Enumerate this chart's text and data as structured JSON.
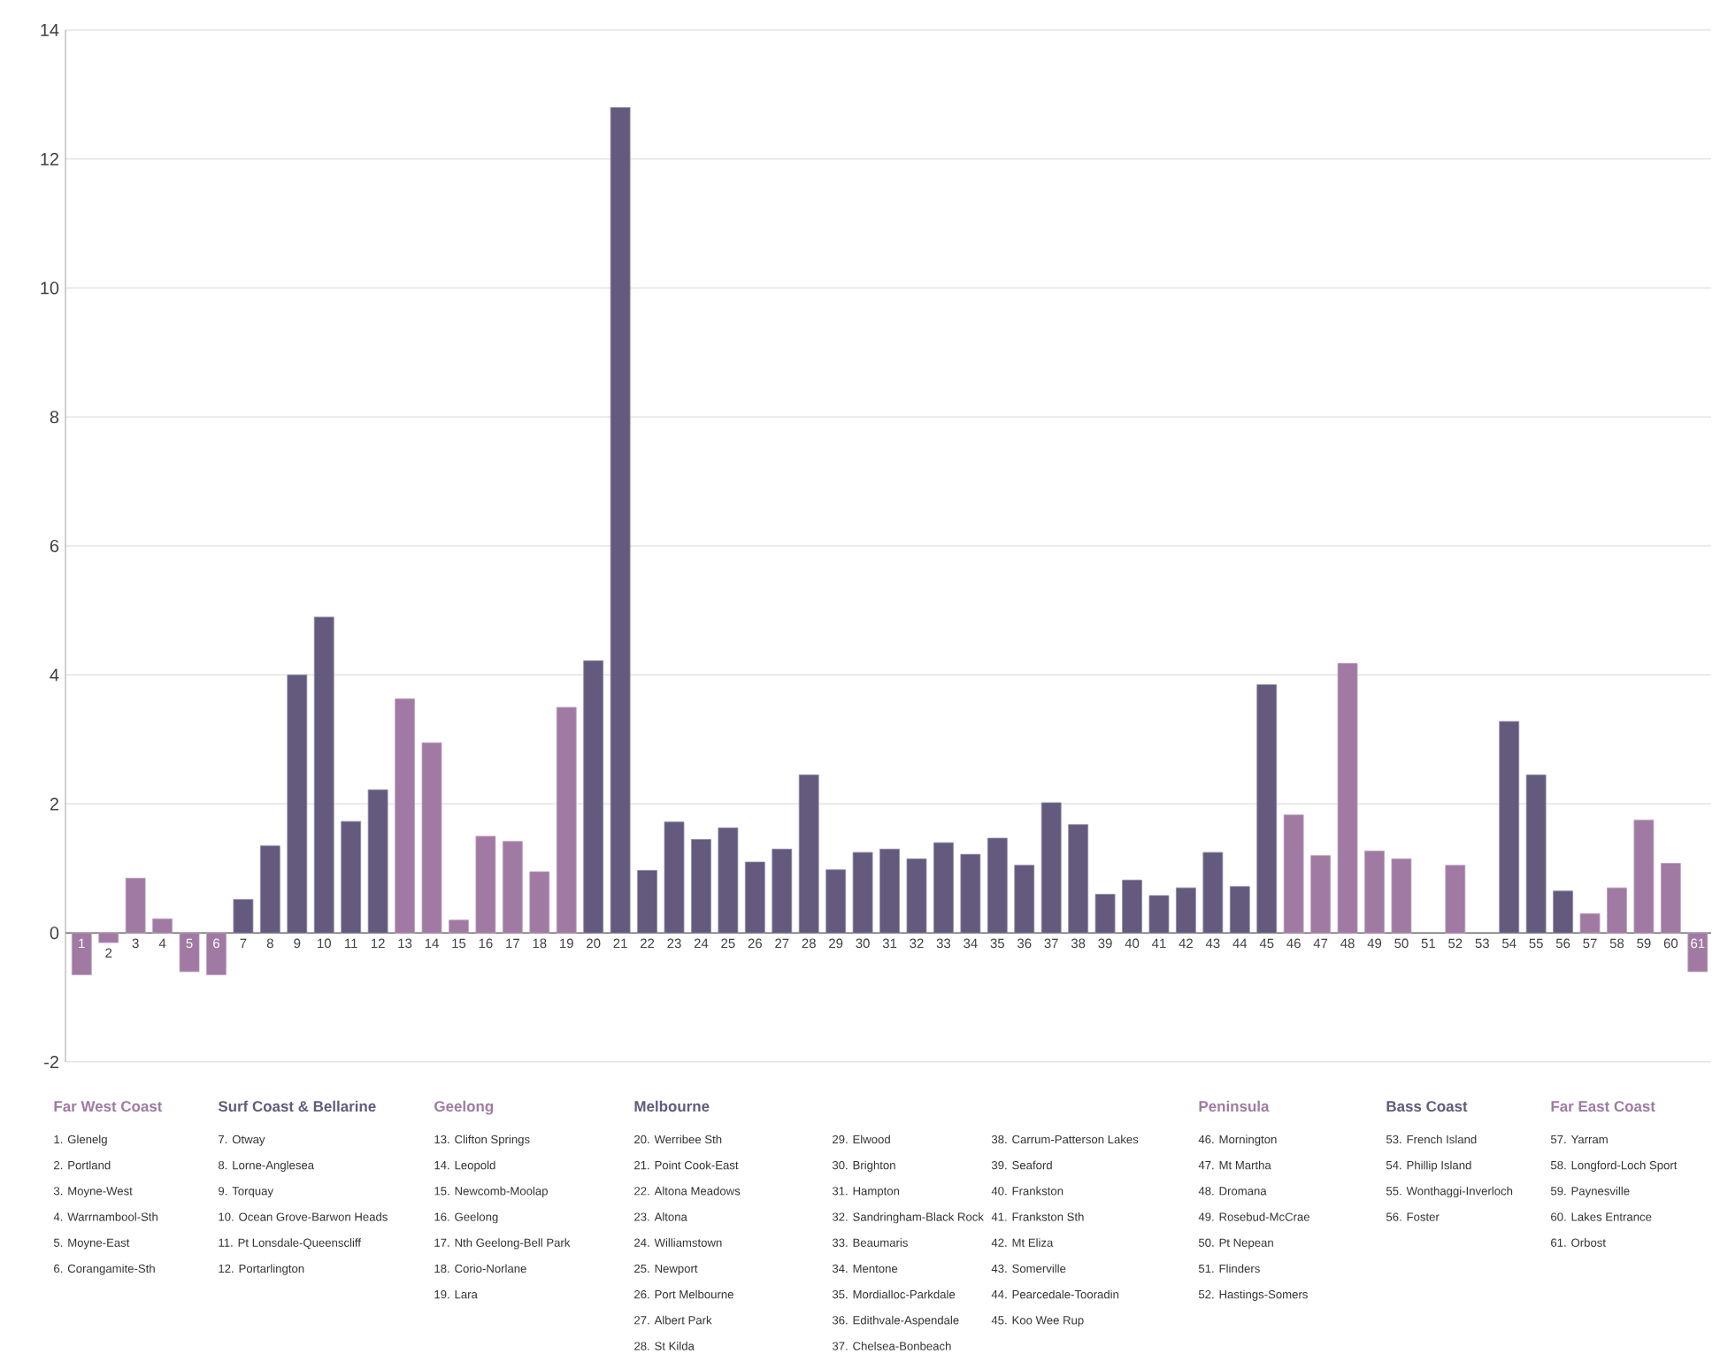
{
  "chart_data": {
    "type": "bar",
    "categories": [
      "1",
      "2",
      "3",
      "4",
      "5",
      "6",
      "7",
      "8",
      "9",
      "10",
      "11",
      "12",
      "13",
      "14",
      "15",
      "16",
      "17",
      "18",
      "19",
      "20",
      "21",
      "22",
      "23",
      "24",
      "25",
      "26",
      "27",
      "28",
      "29",
      "30",
      "31",
      "32",
      "33",
      "34",
      "35",
      "36",
      "37",
      "38",
      "39",
      "40",
      "41",
      "42",
      "43",
      "44",
      "45",
      "46",
      "47",
      "48",
      "49",
      "50",
      "51",
      "52",
      "53",
      "54",
      "55",
      "56",
      "57",
      "58",
      "59",
      "60",
      "61"
    ],
    "values": [
      -0.65,
      -0.15,
      0.85,
      0.22,
      -0.6,
      -0.65,
      0.52,
      1.35,
      4.0,
      4.9,
      1.73,
      2.22,
      3.63,
      2.95,
      0.2,
      1.5,
      1.42,
      0.95,
      3.5,
      4.22,
      12.8,
      0.97,
      1.72,
      1.45,
      1.63,
      1.1,
      1.3,
      2.45,
      0.98,
      1.25,
      1.3,
      1.15,
      1.4,
      1.22,
      1.47,
      1.05,
      2.02,
      1.68,
      0.6,
      0.82,
      0.58,
      0.7,
      1.25,
      0.72,
      3.85,
      1.83,
      1.2,
      4.18,
      1.27,
      1.15,
      0,
      1.05,
      0,
      3.28,
      2.45,
      0.65,
      0.3,
      0.7,
      1.75,
      1.08,
      -0.6
    ],
    "colors": [
      "#a07aa3",
      "#a07aa3",
      "#a07aa3",
      "#a07aa3",
      "#a07aa3",
      "#a07aa3",
      "#635a7e",
      "#635a7e",
      "#635a7e",
      "#635a7e",
      "#635a7e",
      "#635a7e",
      "#a07aa3",
      "#a07aa3",
      "#a07aa3",
      "#a07aa3",
      "#a07aa3",
      "#a07aa3",
      "#a07aa3",
      "#635a7e",
      "#635a7e",
      "#635a7e",
      "#635a7e",
      "#635a7e",
      "#635a7e",
      "#635a7e",
      "#635a7e",
      "#635a7e",
      "#635a7e",
      "#635a7e",
      "#635a7e",
      "#635a7e",
      "#635a7e",
      "#635a7e",
      "#635a7e",
      "#635a7e",
      "#635a7e",
      "#635a7e",
      "#635a7e",
      "#635a7e",
      "#635a7e",
      "#635a7e",
      "#635a7e",
      "#635a7e",
      "#635a7e",
      "#a07aa3",
      "#a07aa3",
      "#a07aa3",
      "#a07aa3",
      "#a07aa3",
      "#a07aa3",
      "#a07aa3",
      "#635a7e",
      "#635a7e",
      "#635a7e",
      "#635a7e",
      "#a07aa3",
      "#a07aa3",
      "#a07aa3",
      "#a07aa3",
      "#a07aa3"
    ],
    "ylim": [
      -2,
      14
    ],
    "yticks": [
      -2,
      0,
      2,
      4,
      6,
      8,
      10,
      12,
      14
    ],
    "grid": "y",
    "annotations": [
      "Far West Coast",
      "1. Glenelg",
      "2. Portland",
      "3. Moyne-West",
      "4. Warrnambool-Sth",
      "5. Moyne-East",
      "6. Corangamite-Sth",
      "Surf Coast & Bellarine",
      "7. Otway",
      "8. Lorne-Anglesea",
      "9. Torquay",
      "10. Ocean Grove-Barwon Heads",
      "11. Pt Lonsdale-Queenscliff",
      "12. Portarlington",
      "Geelong",
      "13. Clifton Springs",
      "14. Leopold",
      "15. Newcomb-Moolap",
      "16. Geelong",
      "17. Nth Geelong-Bell Park",
      "18. Corio-Norlane",
      "19. Lara",
      "Melbourne",
      "20. Werribee Sth",
      "21. Point Cook-East",
      "22. Altona Meadows",
      "23. Altona",
      "24. Williamstown",
      "25. Newport",
      "26. Port Melbourne",
      "27. Albert Park",
      "28. St Kilda",
      "29. Elwood",
      "30. Brighton",
      "31. Hampton",
      "32. Sandringham-Black Rock",
      "33. Beaumaris",
      "34. Mentone",
      "35. Mordialloc-Parkdale",
      "36. Edithvale-Aspendale",
      "37. Chelsea-Bonbeach",
      "38. Carrum-Patterson Lakes",
      "39. Seaford",
      "40. Frankston",
      "41. Frankston Sth",
      "42. Mt Eliza",
      "43. Somerville",
      "44. Pearcedale-Tooradin",
      "45. Koo Wee Rup",
      "Peninsula",
      "46. Mornington",
      "47. Mt Martha",
      "48. Dromana",
      "49. Rosebud-McCrae",
      "50. Pt Nepean",
      "51. Flinders",
      "52. Hastings-Somers",
      "Bass Coast",
      "53. French Island",
      "54. Phillip Island",
      "55. Wonthaggi-Inverloch",
      "56. Foster",
      "Far East Coast",
      "57. Yarram",
      "58. Longford-Loch Sport",
      "59. Paynesville",
      "60. Lakes Entrance",
      "61. Orbost"
    ]
  }
}
